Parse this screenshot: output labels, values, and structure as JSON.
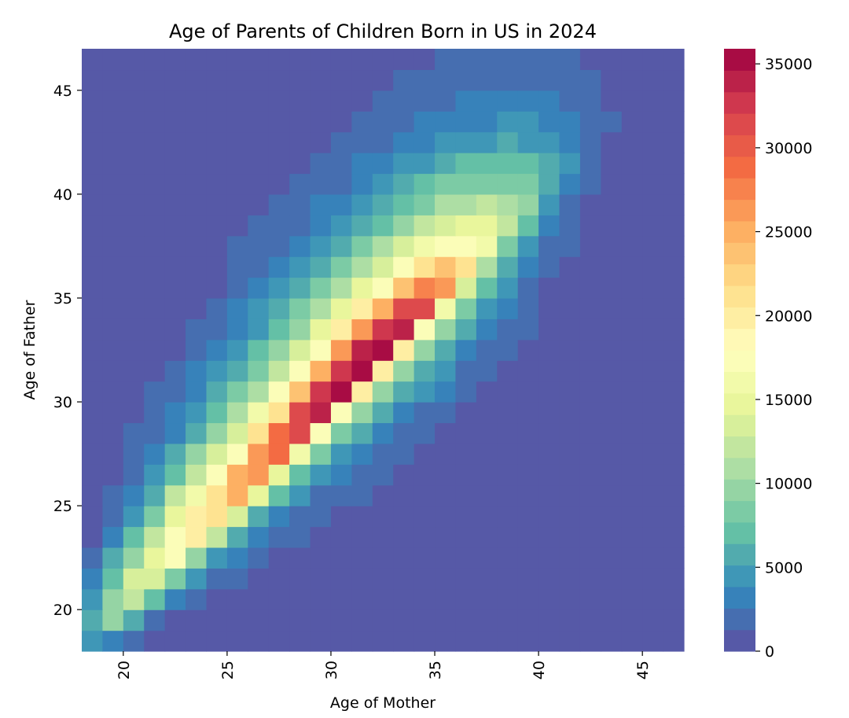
{
  "chart_data": {
    "type": "heatmap",
    "title": "Age of Parents of Children Born in US in 2024",
    "xlabel": "Age of Mother",
    "ylabel": "Age of Father",
    "x": [
      18,
      19,
      20,
      21,
      22,
      23,
      24,
      25,
      26,
      27,
      28,
      29,
      30,
      31,
      32,
      33,
      34,
      35,
      36,
      37,
      38,
      39,
      40,
      41,
      42,
      43,
      44,
      45,
      46
    ],
    "y": [
      18,
      19,
      20,
      21,
      22,
      23,
      24,
      25,
      26,
      27,
      28,
      29,
      30,
      31,
      32,
      33,
      34,
      35,
      36,
      37,
      38,
      39,
      40,
      41,
      42,
      43,
      44,
      45,
      46
    ],
    "xlim": [
      18,
      47
    ],
    "ylim": [
      18,
      47
    ],
    "xticks": [
      20,
      25,
      30,
      35,
      40,
      45
    ],
    "xtick_labels": [
      "20",
      "25",
      "30",
      "35",
      "40",
      "45"
    ],
    "yticks": [
      20,
      25,
      30,
      35,
      40,
      45
    ],
    "ytick_labels": [
      "20",
      "25",
      "30",
      "35",
      "40",
      "45"
    ],
    "colorbar": {
      "vmin": 0,
      "vmax": 35900,
      "levels": 28,
      "ticks": [
        0,
        5000,
        10000,
        15000,
        20000,
        25000,
        30000,
        35000
      ],
      "tick_labels": [
        "0",
        "5000",
        "10000",
        "15000",
        "20000",
        "25000",
        "30000",
        "35000"
      ],
      "placement": "right"
    },
    "colormap": [
      "#5e4fa2",
      "#3288bd",
      "#66c2a5",
      "#abdda4",
      "#e6f598",
      "#ffffbf",
      "#fee08b",
      "#fdae61",
      "#f46d43",
      "#d53e4f",
      "#9e0142"
    ],
    "z_note_rows": "rows ordered by father age ascending (18 first), columns by mother age ascending; missing trailing entries are 0",
    "z": [
      [
        4500,
        3200,
        1900
      ],
      [
        5800,
        9600,
        5800,
        1900
      ],
      [
        4500,
        9600,
        12200,
        7000,
        3200,
        1900
      ],
      [
        3200,
        7000,
        13500,
        13500,
        8300,
        4500,
        1900,
        1900
      ],
      [
        1900,
        5800,
        9600,
        14700,
        17300,
        9600,
        4500,
        3200,
        1900
      ],
      [
        0,
        3200,
        7000,
        12200,
        17300,
        19900,
        12200,
        5800,
        3200,
        1900,
        1900
      ],
      [
        0,
        1900,
        4500,
        8300,
        14700,
        19900,
        21200,
        13500,
        5800,
        3200,
        1900,
        1900
      ],
      [
        0,
        1900,
        3200,
        5800,
        12200,
        16000,
        21200,
        25000,
        14700,
        7000,
        4500,
        1900,
        1900,
        1900
      ],
      [
        0,
        0,
        1900,
        4500,
        7000,
        12200,
        17300,
        25000,
        26300,
        14700,
        7000,
        4500,
        3200,
        1900,
        1900
      ],
      [
        0,
        0,
        1900,
        3200,
        5800,
        9600,
        13500,
        17300,
        26300,
        28800,
        16000,
        8300,
        4500,
        3200,
        1900,
        1900
      ],
      [
        0,
        0,
        1900,
        1900,
        3200,
        5800,
        9600,
        13500,
        21200,
        28800,
        31400,
        17300,
        8300,
        5800,
        3200,
        1900,
        1900
      ],
      [
        0,
        0,
        0,
        1900,
        3200,
        4500,
        7000,
        10900,
        16000,
        21200,
        31400,
        34000,
        17300,
        9600,
        5800,
        3200,
        1900,
        1900
      ],
      [
        0,
        0,
        0,
        1900,
        1900,
        3200,
        5800,
        8300,
        10900,
        17300,
        23700,
        32700,
        35300,
        19900,
        9600,
        5800,
        4500,
        3200,
        1900
      ],
      [
        0,
        0,
        0,
        0,
        1900,
        3200,
        4500,
        5800,
        8300,
        12200,
        17300,
        25000,
        32700,
        35300,
        19900,
        9600,
        5800,
        4500,
        1900,
        1900
      ],
      [
        0,
        0,
        0,
        0,
        0,
        1900,
        3200,
        4500,
        7000,
        9600,
        13500,
        17300,
        26300,
        34000,
        35300,
        19900,
        9600,
        5800,
        3200,
        1900,
        1900
      ],
      [
        0,
        0,
        0,
        0,
        0,
        1900,
        1900,
        3200,
        4500,
        7000,
        9600,
        14700,
        19900,
        26300,
        32700,
        34000,
        17300,
        9600,
        5800,
        3200,
        1900,
        1900
      ],
      [
        0,
        0,
        0,
        0,
        0,
        0,
        1900,
        3200,
        4500,
        5800,
        8300,
        10900,
        14700,
        19900,
        25000,
        31400,
        31400,
        16000,
        8300,
        4500,
        3200,
        1900
      ],
      [
        0,
        0,
        0,
        0,
        0,
        0,
        0,
        1900,
        3200,
        4500,
        5800,
        8300,
        10900,
        14700,
        17300,
        23700,
        27600,
        26300,
        13500,
        7000,
        4500,
        1900
      ],
      [
        0,
        0,
        0,
        0,
        0,
        0,
        0,
        1900,
        1900,
        3200,
        4500,
        5800,
        8300,
        10900,
        13500,
        17300,
        21200,
        23700,
        21200,
        10900,
        5800,
        3200,
        1900
      ],
      [
        0,
        0,
        0,
        0,
        0,
        0,
        0,
        1900,
        1900,
        1900,
        3200,
        4500,
        5800,
        8300,
        10900,
        13500,
        16000,
        17300,
        17300,
        16000,
        8300,
        4500,
        1900,
        1900
      ],
      [
        0,
        0,
        0,
        0,
        0,
        0,
        0,
        0,
        1900,
        1900,
        1900,
        3200,
        4500,
        5800,
        7000,
        9600,
        12200,
        13500,
        14700,
        14700,
        12200,
        7000,
        3200,
        1900
      ],
      [
        0,
        0,
        0,
        0,
        0,
        0,
        0,
        0,
        0,
        1900,
        1900,
        3200,
        3200,
        4500,
        5800,
        7000,
        8300,
        10900,
        10900,
        12200,
        10900,
        9600,
        4500,
        1900
      ],
      [
        0,
        0,
        0,
        0,
        0,
        0,
        0,
        0,
        0,
        0,
        1900,
        1900,
        1900,
        3200,
        4500,
        5800,
        7000,
        8300,
        8300,
        8300,
        8300,
        8300,
        5800,
        3200,
        1900
      ],
      [
        0,
        0,
        0,
        0,
        0,
        0,
        0,
        0,
        0,
        0,
        0,
        1900,
        1900,
        3200,
        3200,
        4500,
        4500,
        5800,
        7000,
        7000,
        7000,
        7000,
        5800,
        4500,
        1900
      ],
      [
        0,
        0,
        0,
        0,
        0,
        0,
        0,
        0,
        0,
        0,
        0,
        0,
        1900,
        1900,
        1900,
        3200,
        3200,
        4500,
        4500,
        4500,
        5800,
        4500,
        4500,
        3200,
        1900
      ],
      [
        0,
        0,
        0,
        0,
        0,
        0,
        0,
        0,
        0,
        0,
        0,
        0,
        0,
        1900,
        1900,
        1900,
        3200,
        3200,
        3200,
        3200,
        4500,
        4500,
        3200,
        3200,
        1900,
        1900
      ],
      [
        0,
        0,
        0,
        0,
        0,
        0,
        0,
        0,
        0,
        0,
        0,
        0,
        0,
        0,
        1900,
        1900,
        1900,
        1900,
        3200,
        3200,
        3200,
        3200,
        3200,
        1900,
        1900
      ],
      [
        0,
        0,
        0,
        0,
        0,
        0,
        0,
        0,
        0,
        0,
        0,
        0,
        0,
        0,
        0,
        1900,
        1900,
        1900,
        1900,
        1900,
        1900,
        1900,
        1900,
        1900,
        1900
      ],
      [
        0,
        0,
        0,
        0,
        0,
        0,
        0,
        0,
        0,
        0,
        0,
        0,
        0,
        0,
        0,
        0,
        0,
        1900,
        1900,
        1900,
        1900,
        1900,
        1900,
        1900
      ]
    ]
  }
}
